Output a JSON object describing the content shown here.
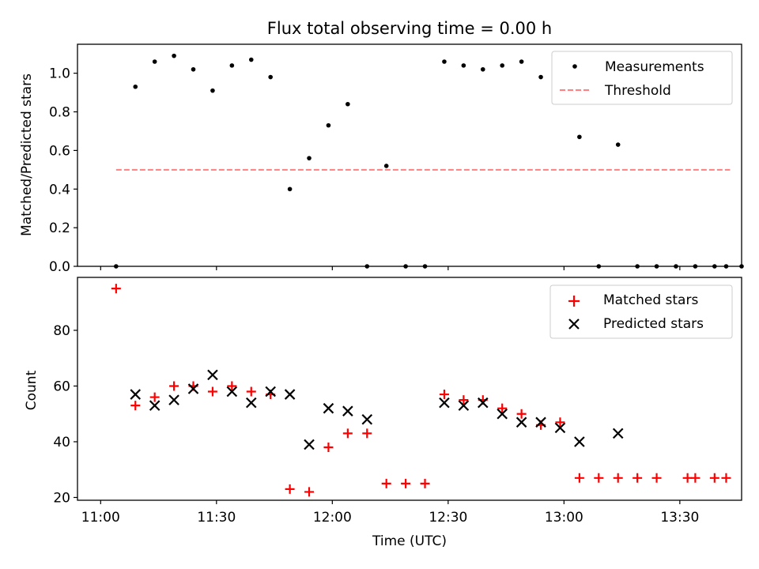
{
  "title": "Flux total observing time = 0.00 h",
  "chart_data": [
    {
      "type": "scatter",
      "title": "Flux total observing time = 0.00 h",
      "xlabel": "",
      "ylabel": "Matched/Predicted stars",
      "x_units": "minutes after 11:00 UTC",
      "xlim": [
        -6,
        166
      ],
      "ylim": [
        0,
        1.15
      ],
      "yticks": [
        0.0,
        0.2,
        0.4,
        0.6,
        0.8,
        1.0
      ],
      "ytick_labels": [
        "0.0",
        "0.2",
        "0.4",
        "0.6",
        "0.8",
        "1.0"
      ],
      "legend_position": "upper right",
      "series": [
        {
          "name": "Measurements",
          "marker": "dot",
          "color": "#000000",
          "x": [
            4,
            9,
            14,
            19,
            24,
            29,
            34,
            39,
            44,
            49,
            54,
            59,
            64,
            69,
            74,
            79,
            84,
            89,
            94,
            99,
            104,
            109,
            114,
            119,
            124,
            129,
            134,
            139,
            144,
            149,
            154,
            159,
            162,
            166
          ],
          "y": [
            0.0,
            0.93,
            1.06,
            1.09,
            1.02,
            0.91,
            1.04,
            1.07,
            0.98,
            0.4,
            0.56,
            0.73,
            0.84,
            0.0,
            0.52,
            0.0,
            0.0,
            1.06,
            1.04,
            1.02,
            1.04,
            1.06,
            0.98,
            1.05,
            0.67,
            0.0,
            0.63,
            0.0,
            0.0,
            0.0,
            0.0,
            0.0,
            0.0,
            0.0
          ]
        },
        {
          "name": "Threshold",
          "line": "dashed",
          "color": "#ff8080",
          "x": [
            4,
            163
          ],
          "y": [
            0.5,
            0.5
          ]
        }
      ]
    },
    {
      "type": "scatter",
      "xlabel": "Time (UTC)",
      "ylabel": "Count",
      "x_units": "minutes after 11:00 UTC",
      "xlim": [
        -6,
        166
      ],
      "ylim": [
        19,
        99
      ],
      "yticks": [
        20,
        40,
        60,
        80
      ],
      "ytick_labels": [
        "20",
        "40",
        "60",
        "80"
      ],
      "xticks": [
        0,
        30,
        60,
        90,
        120,
        150
      ],
      "xtick_labels": [
        "11:00",
        "11:30",
        "12:00",
        "12:30",
        "13:00",
        "13:30"
      ],
      "legend_position": "upper right",
      "series": [
        {
          "name": "Matched stars",
          "marker": "plus",
          "color": "#ff0000",
          "x": [
            4,
            9,
            14,
            19,
            24,
            29,
            34,
            39,
            44,
            49,
            54,
            59,
            64,
            69,
            74,
            79,
            84,
            89,
            94,
            99,
            104,
            109,
            114,
            119,
            124,
            129,
            134,
            139,
            144,
            152,
            154,
            159,
            162
          ],
          "y": [
            95,
            53,
            56,
            60,
            60,
            58,
            60,
            58,
            57,
            23,
            22,
            38,
            43,
            43,
            25,
            25,
            25,
            57,
            55,
            55,
            52,
            50,
            46,
            47,
            27,
            27,
            27,
            27,
            27,
            27,
            27,
            27,
            27
          ]
        },
        {
          "name": "Predicted stars",
          "marker": "x",
          "color": "#000000",
          "x": [
            9,
            14,
            19,
            24,
            29,
            34,
            39,
            44,
            49,
            54,
            59,
            64,
            69,
            89,
            94,
            99,
            104,
            109,
            114,
            119,
            124,
            134
          ],
          "y": [
            57,
            53,
            55,
            59,
            64,
            58,
            54,
            58,
            57,
            39,
            52,
            51,
            48,
            54,
            53,
            54,
            50,
            47,
            47,
            45,
            40,
            43
          ]
        }
      ]
    }
  ]
}
